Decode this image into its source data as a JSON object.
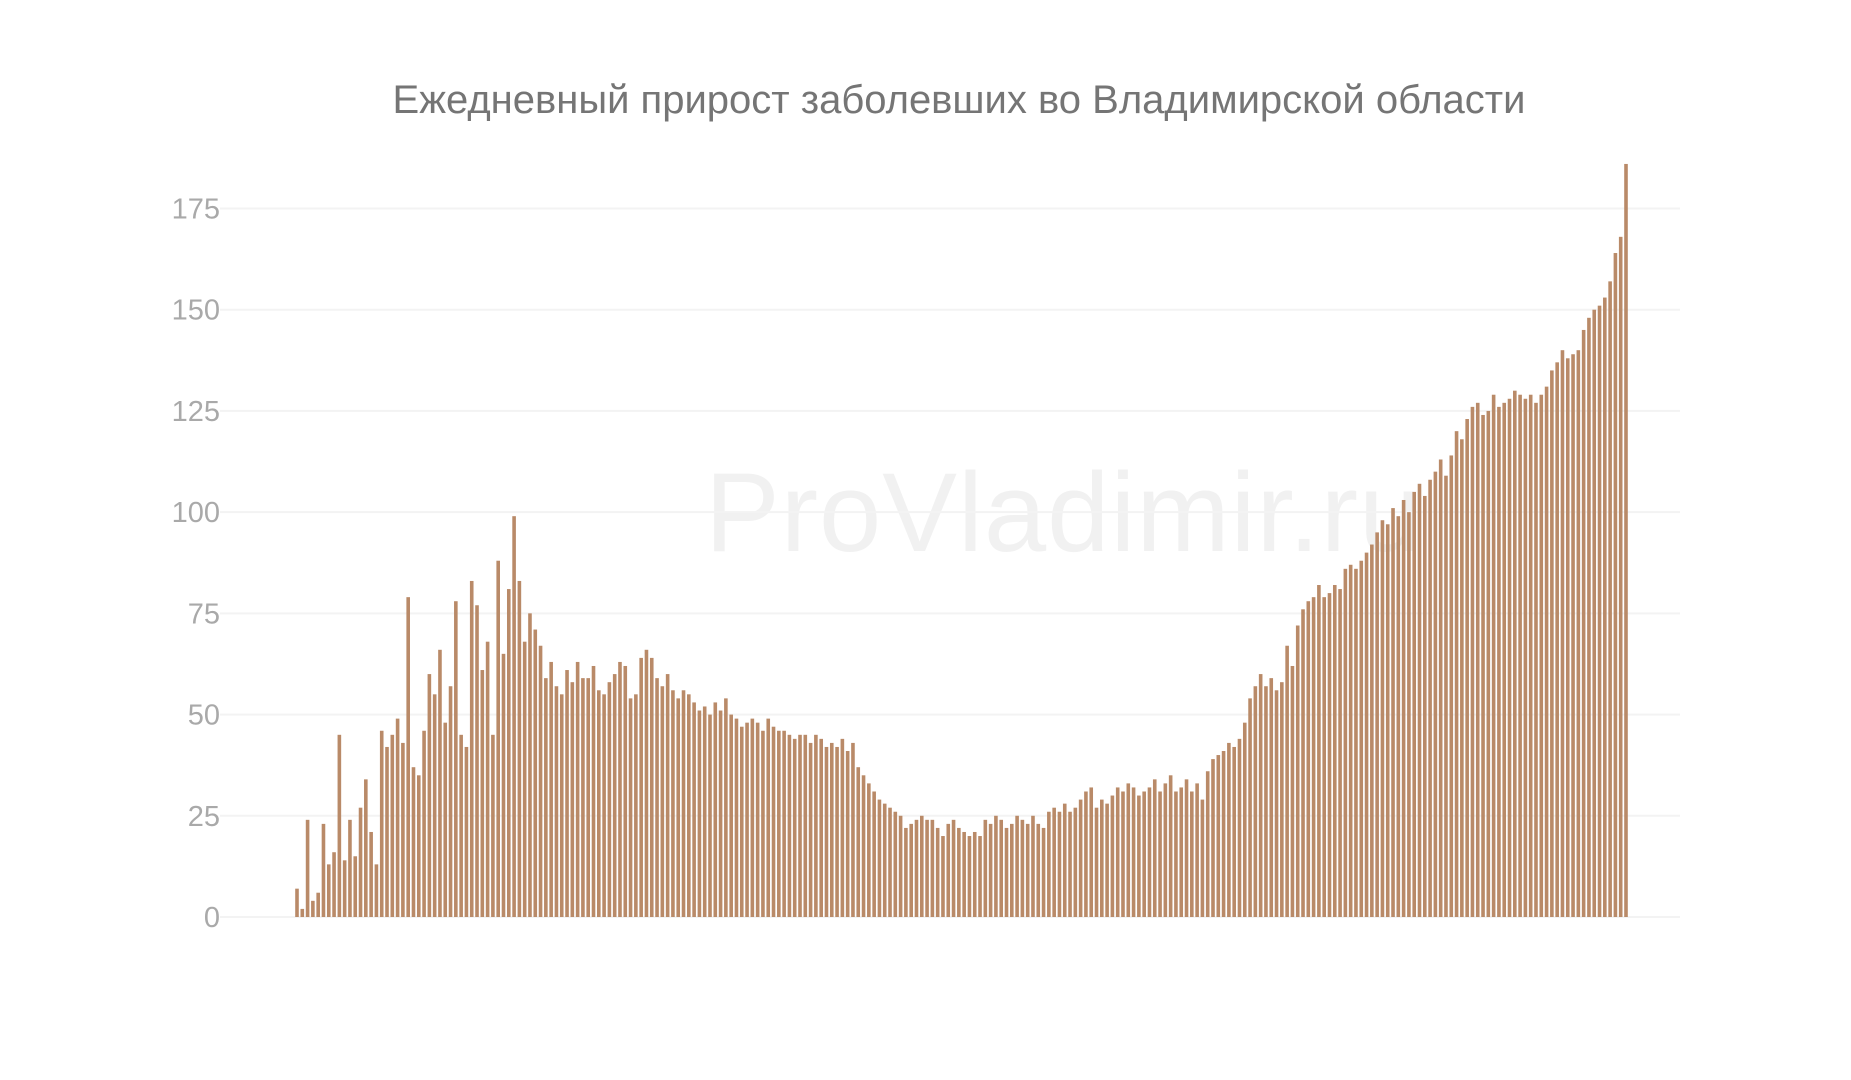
{
  "chart_data": {
    "type": "bar",
    "title": "Ежедневный прирост заболевших во Владимирской области",
    "watermark": "ProVladimir.ru",
    "xlabel": "",
    "ylabel": "",
    "ylim": [
      0,
      185
    ],
    "yticks": [
      0,
      25,
      50,
      75,
      100,
      125,
      150,
      175
    ],
    "grid": true,
    "bar_color": "#b98a68",
    "values": [
      7,
      2,
      24,
      4,
      6,
      23,
      13,
      16,
      45,
      14,
      24,
      15,
      27,
      34,
      21,
      13,
      46,
      42,
      45,
      49,
      43,
      79,
      37,
      35,
      46,
      60,
      55,
      66,
      48,
      57,
      78,
      45,
      42,
      83,
      77,
      61,
      68,
      45,
      88,
      65,
      81,
      99,
      83,
      68,
      75,
      71,
      67,
      59,
      63,
      57,
      55,
      61,
      58,
      63,
      59,
      59,
      62,
      56,
      55,
      58,
      60,
      63,
      62,
      54,
      55,
      64,
      66,
      64,
      59,
      57,
      60,
      56,
      54,
      56,
      55,
      53,
      51,
      52,
      50,
      53,
      51,
      54,
      50,
      49,
      47,
      48,
      49,
      48,
      46,
      49,
      47,
      46,
      46,
      45,
      44,
      45,
      45,
      43,
      45,
      44,
      42,
      43,
      42,
      44,
      41,
      43,
      37,
      35,
      33,
      31,
      29,
      28,
      27,
      26,
      25,
      22,
      23,
      24,
      25,
      24,
      24,
      22,
      20,
      23,
      24,
      22,
      21,
      20,
      21,
      20,
      24,
      23,
      25,
      24,
      22,
      23,
      25,
      24,
      23,
      25,
      23,
      22,
      26,
      27,
      26,
      28,
      26,
      27,
      29,
      31,
      32,
      27,
      29,
      28,
      30,
      32,
      31,
      33,
      32,
      30,
      31,
      32,
      34,
      31,
      33,
      35,
      31,
      32,
      34,
      31,
      33,
      29,
      36,
      39,
      40,
      41,
      43,
      42,
      44,
      48,
      54,
      57,
      60,
      57,
      59,
      56,
      58,
      67,
      62,
      72,
      76,
      78,
      79,
      82,
      79,
      80,
      82,
      81,
      86,
      87,
      86,
      88,
      90,
      92,
      95,
      98,
      97,
      101,
      99,
      103,
      100,
      105,
      107,
      104,
      108,
      110,
      113,
      109,
      114,
      120,
      118,
      123,
      126,
      127,
      124,
      125,
      129,
      126,
      127,
      128,
      130,
      129,
      128,
      129,
      127,
      129,
      131,
      135,
      137,
      140,
      138,
      139,
      140,
      145,
      148,
      150,
      151,
      153,
      157,
      164,
      168,
      186
    ]
  }
}
